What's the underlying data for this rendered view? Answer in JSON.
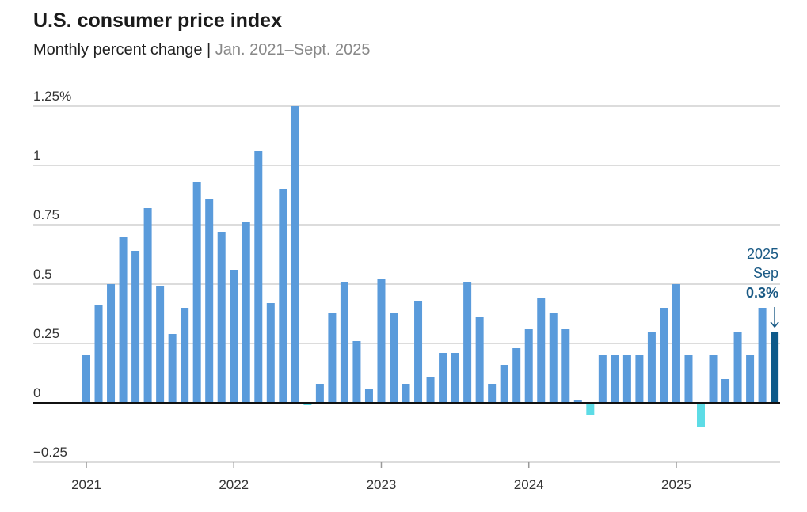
{
  "chart_data": {
    "type": "bar",
    "title": "U.S. consumer price index",
    "subtitle": "Monthly percent change",
    "subtitle_range": "Jan. 2021–Sept. 2025",
    "ylim": [
      -0.25,
      1.25
    ],
    "yticks": [
      -0.25,
      0,
      0.25,
      0.5,
      0.75,
      1,
      1.25
    ],
    "ytick_labels": [
      "−0.25",
      "0",
      "0.25",
      "0.5",
      "0.75",
      "1",
      "1.25%"
    ],
    "xtick_labels": [
      "2021",
      "2022",
      "2023",
      "2024",
      "2025"
    ],
    "grid": true,
    "start": "2021-01",
    "values": [
      0.2,
      0.41,
      0.5,
      0.7,
      0.64,
      0.82,
      0.49,
      0.29,
      0.4,
      0.93,
      0.86,
      0.72,
      0.56,
      0.76,
      1.06,
      0.42,
      0.9,
      1.25,
      -0.01,
      0.08,
      0.38,
      0.51,
      0.26,
      0.06,
      0.52,
      0.38,
      0.08,
      0.43,
      0.11,
      0.21,
      0.21,
      0.51,
      0.36,
      0.08,
      0.16,
      0.23,
      0.31,
      0.44,
      0.38,
      0.31,
      0.01,
      -0.05,
      0.2,
      0.2,
      0.2,
      0.2,
      0.3,
      0.4,
      0.5,
      0.2,
      -0.1,
      0.2,
      0.1,
      0.3,
      0.2,
      0.4,
      0.3
    ],
    "annotation": {
      "year": "2025",
      "month": "Sep",
      "value": "0.3%"
    },
    "colors": {
      "positive": "#5a9bdb",
      "negative": "#5ddce6",
      "latest": "#0e5a8a",
      "annotation": "#1a5a85"
    }
  }
}
